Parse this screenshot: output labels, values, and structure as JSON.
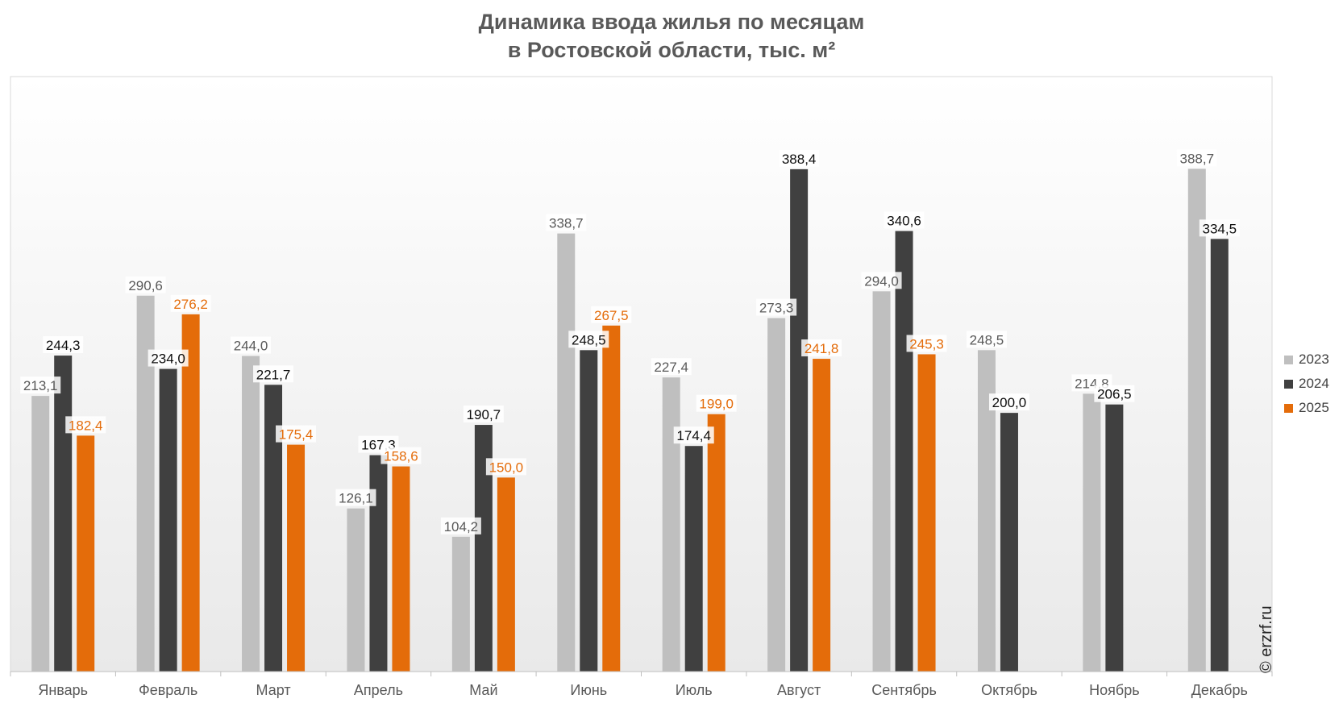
{
  "chart_data": {
    "type": "bar",
    "title": [
      "Динамика ввода жилья по месяцам",
      "в Ростовской области, тыс. м²"
    ],
    "categories": [
      "Январь",
      "Февраль",
      "Март",
      "Апрель",
      "Май",
      "Июнь",
      "Июль",
      "Август",
      "Сентябрь",
      "Октябрь",
      "Ноябрь",
      "Декабрь"
    ],
    "series": [
      {
        "name": "2023",
        "color": "#bfbfbf",
        "label_color": "#595959",
        "values": [
          213.1,
          290.6,
          244.0,
          126.1,
          104.2,
          338.7,
          227.4,
          273.3,
          294.0,
          248.5,
          214.8,
          388.7
        ],
        "labels": [
          "213,1",
          "290,6",
          "244,0",
          "126,1",
          "104,2",
          "338,7",
          "227,4",
          "273,3",
          "294,0",
          "248,5",
          "214,8",
          "388,7"
        ]
      },
      {
        "name": "2024",
        "color": "#404040",
        "label_color": "#0d0d0d",
        "values": [
          244.3,
          234.0,
          221.7,
          167.3,
          190.7,
          248.5,
          174.4,
          388.4,
          340.6,
          200.0,
          206.5,
          334.5
        ],
        "labels": [
          "244,3",
          "234,0",
          "221,7",
          "167,3",
          "190,7",
          "248,5",
          "174,4",
          "388,4",
          "340,6",
          "200,0",
          "206,5",
          "334,5"
        ]
      },
      {
        "name": "2025",
        "color": "#e46c0a",
        "label_color": "#e46c0a",
        "values": [
          182.4,
          276.2,
          175.4,
          158.6,
          150.0,
          267.5,
          199.0,
          241.8,
          245.3,
          null,
          null,
          null
        ],
        "labels": [
          "182,4",
          "276,2",
          "175,4",
          "158,6",
          "150,0",
          "267,5",
          "199,0",
          "241,8",
          "245,3",
          "",
          "",
          ""
        ]
      }
    ],
    "ylim": [
      0,
      460
    ],
    "grid": false,
    "legend": "right"
  },
  "watermark": "© erzrf.ru"
}
